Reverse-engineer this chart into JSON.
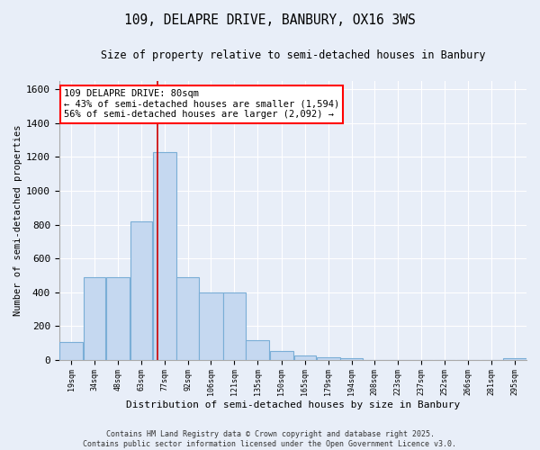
{
  "title_line1": "109, DELAPRE DRIVE, BANBURY, OX16 3WS",
  "title_line2": "Size of property relative to semi-detached houses in Banbury",
  "xlabel": "Distribution of semi-detached houses by size in Banbury",
  "ylabel": "Number of semi-detached properties",
  "annotation_box_text": "109 DELAPRE DRIVE: 80sqm\n← 43% of semi-detached houses are smaller (1,594)\n56% of semi-detached houses are larger (2,092) →",
  "bins": [
    19,
    34,
    48,
    63,
    77,
    92,
    106,
    121,
    135,
    150,
    165,
    179,
    194,
    208,
    223,
    237,
    252,
    266,
    281,
    295,
    310
  ],
  "bar_heights": [
    105,
    490,
    490,
    820,
    1230,
    490,
    400,
    400,
    115,
    50,
    25,
    15,
    10,
    0,
    0,
    0,
    0,
    0,
    0,
    10
  ],
  "bar_color": "#c5d8f0",
  "bar_edge_color": "#7aaed6",
  "vline_x": 80,
  "vline_color": "#cc0000",
  "ylim": [
    0,
    1650
  ],
  "xlim": [
    19,
    310
  ],
  "background_color": "#e8eef8",
  "grid_color": "#ffffff",
  "footer_line1": "Contains HM Land Registry data © Crown copyright and database right 2025.",
  "footer_line2": "Contains public sector information licensed under the Open Government Licence v3.0."
}
